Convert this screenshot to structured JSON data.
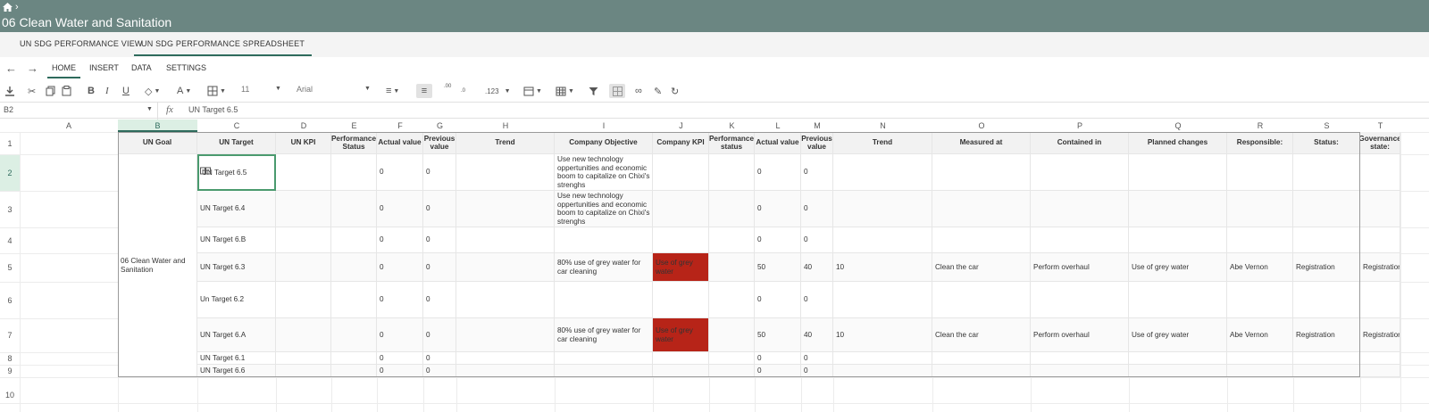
{
  "header": {
    "home_icon": "home-icon",
    "crumb_sep": "›",
    "title": "06 Clean Water and Sanitation",
    "bg": "#6b8682"
  },
  "view_tabs": [
    {
      "label": "UN SDG PERFORMANCE VIEW",
      "active": false
    },
    {
      "label": "UN SDG PERFORMANCE SPREADSHEET",
      "active": true
    }
  ],
  "ribbon_tabs": [
    {
      "label": "HOME",
      "active": true
    },
    {
      "label": "INSERT",
      "active": false
    },
    {
      "label": "DATA",
      "active": false
    },
    {
      "label": "SETTINGS",
      "active": false
    }
  ],
  "toolbar": {
    "font_size": "11",
    "font_family": "Arial",
    "number_format": ".123",
    "decimal_inc": ".00",
    "decimal_dec": ".0"
  },
  "formula_bar": {
    "cell_ref": "B2",
    "fx_label": "fx",
    "value": "UN Target 6.5"
  },
  "columns": [
    "A",
    "B",
    "C",
    "D",
    "E",
    "F",
    "G",
    "H",
    "I",
    "J",
    "K",
    "L",
    "M",
    "N",
    "O",
    "P",
    "Q",
    "R",
    "S",
    "T"
  ],
  "rows": [
    "1",
    "2",
    "3",
    "4",
    "5",
    "6",
    "7",
    "8",
    "9",
    "10"
  ],
  "table_headers": [
    "UN Goal",
    "UN Target",
    "UN KPI",
    "Performance Status",
    "Actual value",
    "Previous value",
    "Trend",
    "Company Objective",
    "Company KPI",
    "Performance status",
    "Actual value",
    "Previous value",
    "Trend",
    "Measured at",
    "Contained in",
    "Planned changes",
    "Responsible:",
    "Status:",
    "Governance state:"
  ],
  "un_goal": "06 Clean Water and Sanitation",
  "data_rows": [
    {
      "target": "UN Target 6.5",
      "e": "0",
      "f": "0",
      "objective": "Use new technology oppertunities and economic boom to capitalize on Chixi's strenghs",
      "kpi": "",
      "red": false,
      "k": "0",
      "l": "0",
      "m": "",
      "n": "",
      "o": "",
      "p": "",
      "q": "",
      "r": "",
      "s": ""
    },
    {
      "target": "UN Target 6.4",
      "e": "0",
      "f": "0",
      "objective": "Use new technology oppertunities and economic boom to capitalize on Chixi's strenghs",
      "kpi": "",
      "red": false,
      "k": "0",
      "l": "0",
      "m": "",
      "n": "",
      "o": "",
      "p": "",
      "q": "",
      "r": "",
      "s": ""
    },
    {
      "target": "UN Target 6.B",
      "e": "0",
      "f": "0",
      "objective": "",
      "kpi": "",
      "red": false,
      "k": "0",
      "l": "0",
      "m": "",
      "n": "",
      "o": "",
      "p": "",
      "q": "",
      "r": "",
      "s": ""
    },
    {
      "target": "UN Target 6.3",
      "e": "0",
      "f": "0",
      "objective": "80% use of grey water for car cleaning",
      "kpi": "Use of grey water",
      "red": true,
      "k": "50",
      "l": "40",
      "m": "10",
      "n": "Clean the car",
      "o": "Perform overhaul",
      "p": "Use of grey water",
      "q": "Abe Vernon",
      "r": "Registration",
      "s": "Registration"
    },
    {
      "target": "Un Target 6.2",
      "e": "0",
      "f": "0",
      "objective": "",
      "kpi": "",
      "red": false,
      "k": "0",
      "l": "0",
      "m": "",
      "n": "",
      "o": "",
      "p": "",
      "q": "",
      "r": "",
      "s": ""
    },
    {
      "target": "UN Target 6.A",
      "e": "0",
      "f": "0",
      "objective": "80% use of grey water for car cleaning",
      "kpi": "Use of grey water",
      "red": true,
      "k": "50",
      "l": "40",
      "m": "10",
      "n": "Clean the car",
      "o": "Perform overhaul",
      "p": "Use of grey water",
      "q": "Abe Vernon",
      "r": "Registration",
      "s": "Registration"
    },
    {
      "target": "UN Target 6.1",
      "e": "0",
      "f": "0",
      "objective": "",
      "kpi": "",
      "red": false,
      "k": "0",
      "l": "0",
      "m": "",
      "n": "",
      "o": "",
      "p": "",
      "q": "",
      "r": "",
      "s": ""
    },
    {
      "target": "UN Target 6.6",
      "e": "0",
      "f": "0",
      "objective": "",
      "kpi": "",
      "red": false,
      "k": "0",
      "l": "0",
      "m": "",
      "n": "",
      "o": "",
      "p": "",
      "q": "",
      "r": "",
      "s": ""
    }
  ],
  "colors": {
    "accent": "#2e6b5c",
    "bad_status": "#b72418",
    "selection": "#dcefe4"
  }
}
